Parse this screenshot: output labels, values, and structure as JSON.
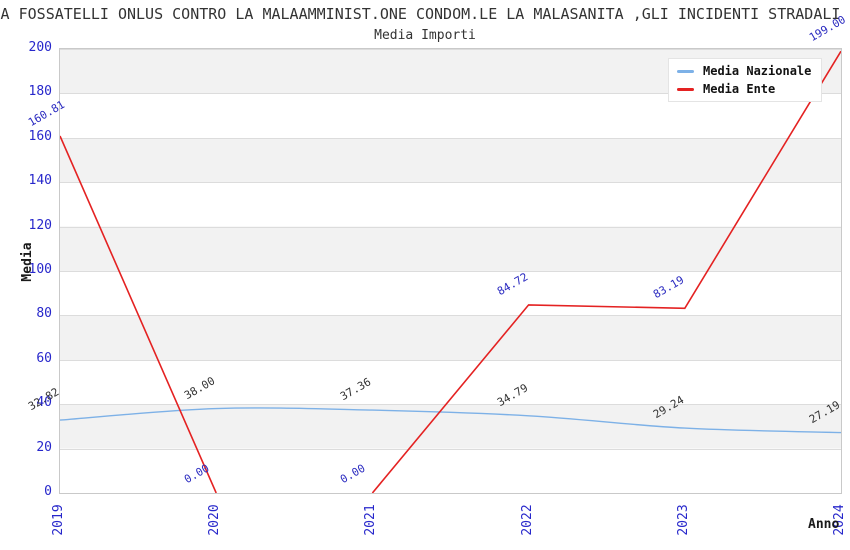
{
  "chart_data": {
    "type": "line",
    "title": "GA FOSSATELLI ONLUS CONTRO LA MALAAMMINIST.ONE CONDOM.LE LA MALASANITA ,GLI INCIDENTI STRADALI N",
    "subtitle": "Media Importi",
    "xlabel": "Anno",
    "ylabel": "Media",
    "x": [
      "2019",
      "2020",
      "2021",
      "2022",
      "2023",
      "2024"
    ],
    "ylim": [
      0,
      200
    ],
    "yticks": [
      0,
      20,
      40,
      60,
      80,
      100,
      120,
      140,
      160,
      180,
      200
    ],
    "grid": "horizontal-bands",
    "legend_position": "top-right",
    "series": [
      {
        "name": "Media Nazionale",
        "color": "#7db1e7",
        "values": [
          32.82,
          38.0,
          37.36,
          34.79,
          29.24,
          27.19
        ],
        "labels": [
          "32.82",
          "38.00",
          "37.36",
          "34.79",
          "29.24",
          "27.19"
        ],
        "label_color": "#333333",
        "style": "smooth"
      },
      {
        "name": "Media Ente",
        "color": "#e42222",
        "values": [
          160.81,
          0.0,
          0.0,
          84.72,
          83.19,
          199.0
        ],
        "labels": [
          "160.81",
          "0.00",
          "0.00",
          "84.72",
          "83.19",
          "199.00"
        ],
        "label_color": "#2a2ac0",
        "style": "straight"
      }
    ],
    "colors": {
      "tick_label": "#2727cb",
      "band_gray": "#f2f2f2",
      "axis_border": "#c9c9c9",
      "gridline": "#dcdcdc"
    }
  }
}
